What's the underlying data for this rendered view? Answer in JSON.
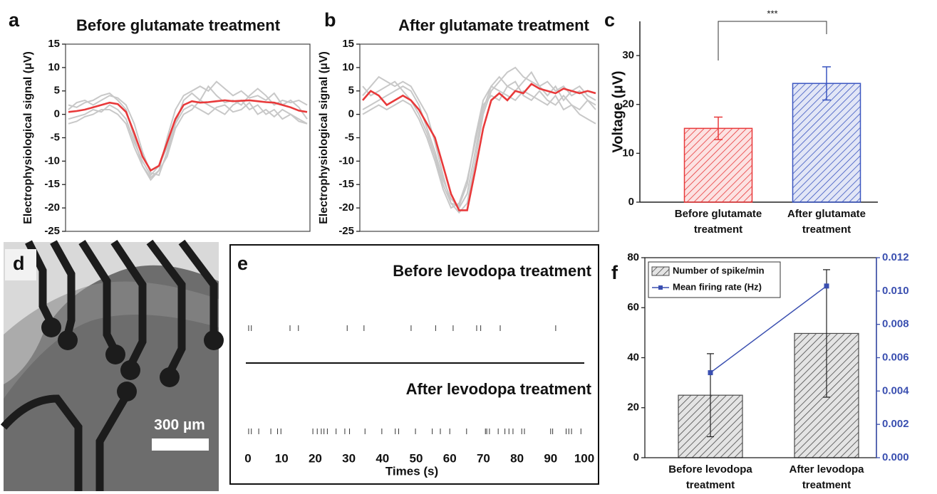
{
  "panel_labels": [
    "a",
    "b",
    "c",
    "d",
    "e",
    "f"
  ],
  "image": {
    "scale_bar_label": "300 µm"
  },
  "chart_data": [
    {
      "type": "line",
      "title": "Before glutamate treatment",
      "y_label": "Electrophysiological signal (μV)",
      "ylim": [
        -25,
        15
      ],
      "yticks": [
        15,
        10,
        5,
        0,
        -5,
        -10,
        -15,
        -20,
        -25
      ],
      "series": [
        {
          "color": "#c8c8c8",
          "values": [
            2,
            1.5,
            2.5,
            3,
            4,
            4.5,
            3,
            1,
            -5,
            -11,
            -13.5,
            -12,
            -5,
            1,
            4,
            5,
            6,
            5,
            7,
            5.5,
            4,
            5,
            3.5,
            4,
            3,
            4.5,
            2,
            3,
            1.5,
            -1
          ]
        },
        {
          "color": "#c8c8c8",
          "values": [
            -1,
            -0.5,
            0,
            1,
            0.5,
            2,
            1,
            -1,
            -6,
            -10,
            -13,
            -11,
            -7,
            -2,
            1,
            2,
            1,
            0,
            1.5,
            2,
            0.5,
            1,
            2.5,
            0,
            1,
            -0.5,
            1,
            0,
            -1,
            -2
          ]
        },
        {
          "color": "#c8c8c8",
          "values": [
            1,
            2.5,
            3,
            2,
            3,
            4,
            3.5,
            2,
            -2,
            -8,
            -12.5,
            -13,
            -8,
            -2,
            3,
            4.5,
            3,
            6,
            4,
            2.5,
            3,
            2,
            4,
            5.5,
            4,
            2,
            3,
            2.5,
            3,
            2
          ]
        },
        {
          "color": "#c8c8c8",
          "values": [
            -2,
            -1.5,
            -0.5,
            0,
            1,
            1,
            0,
            -2,
            -7,
            -11,
            -14,
            -12,
            -9,
            -3,
            0,
            1,
            3,
            2,
            1,
            0,
            2,
            3,
            1,
            2,
            0,
            1,
            -1,
            0,
            -1.5,
            -2
          ]
        },
        {
          "color": "#e8393a",
          "values": [
            0.5,
            0.7,
            1.0,
            1.5,
            2.0,
            2.5,
            2.2,
            0.5,
            -4,
            -9,
            -12,
            -11,
            -6,
            -1,
            2,
            2.8,
            2.5,
            2.6,
            2.8,
            3.0,
            2.8,
            2.9,
            3.0,
            2.8,
            2.6,
            2.5,
            2.0,
            1.5,
            0.8,
            0.5
          ]
        }
      ]
    },
    {
      "type": "line",
      "title": "After glutamate treatment",
      "y_label": "Electrophysiological signal (μV)",
      "ylim": [
        -25,
        15
      ],
      "yticks": [
        15,
        10,
        5,
        0,
        -5,
        -10,
        -15,
        -20,
        -25
      ],
      "series": [
        {
          "color": "#c8c8c8",
          "values": [
            4,
            6,
            8,
            7,
            6,
            7,
            6,
            3,
            0,
            -6,
            -13,
            -19,
            -21,
            -19,
            -10,
            0,
            5,
            7,
            9,
            10,
            8,
            7,
            6,
            7,
            5,
            6,
            4,
            5,
            3,
            2
          ]
        },
        {
          "color": "#c8c8c8",
          "values": [
            1,
            2,
            3,
            4,
            5,
            6,
            5,
            2,
            -3,
            -8,
            -14,
            -18,
            -20,
            -17,
            -8,
            1,
            6,
            5,
            4,
            3,
            5,
            4,
            3,
            2,
            4,
            1,
            2,
            0,
            -1,
            -2
          ]
        },
        {
          "color": "#c8c8c8",
          "values": [
            6,
            4,
            5,
            6,
            7,
            5,
            3,
            0,
            -4,
            -9,
            -15,
            -19,
            -19.5,
            -15,
            -5,
            3,
            6,
            8,
            6,
            5,
            7,
            9,
            6,
            4,
            6,
            3,
            5,
            6,
            4,
            3
          ]
        },
        {
          "color": "#c8c8c8",
          "values": [
            0,
            1,
            2,
            1,
            2,
            3,
            2,
            -1,
            -5,
            -10,
            -16,
            -20,
            -19,
            -14,
            -6,
            2,
            4,
            3,
            6,
            7,
            4,
            3,
            5,
            3,
            2,
            4,
            2,
            1,
            3,
            1
          ]
        },
        {
          "color": "#e8393a",
          "values": [
            3,
            5,
            4,
            2,
            3,
            4,
            3,
            1,
            -2,
            -5,
            -11,
            -17,
            -20.5,
            -20.5,
            -12,
            -3,
            3,
            4.5,
            3,
            5,
            4.5,
            6.5,
            5.5,
            5,
            4.5,
            5.5,
            5,
            4.5,
            5,
            4.5
          ]
        }
      ]
    },
    {
      "type": "bar",
      "y_label": "Voltage (μV)",
      "categories": [
        "Before glutamate treatment",
        "After glutamate treatment"
      ],
      "values": [
        15.1,
        24.3
      ],
      "errors": [
        2.3,
        3.4
      ],
      "colors": [
        "#e8393a",
        "#3a55c0"
      ],
      "ylim": [
        0,
        37
      ],
      "yticks": [
        0,
        10,
        20,
        30
      ],
      "annotation": "***"
    },
    {
      "type": "raster",
      "x_label": "Times (s)",
      "xlim": [
        0,
        100
      ],
      "xticks": [
        0,
        10,
        20,
        30,
        40,
        50,
        60,
        70,
        80,
        90,
        100
      ],
      "series": [
        {
          "name": "Before levodopa treatment",
          "values": [
            0.2,
            1.0,
            12.5,
            15.0,
            29.5,
            34.5,
            48.5,
            55.8,
            61.0,
            68.0,
            69.2,
            75.0,
            91.5
          ]
        },
        {
          "name": "After levodopa treatment",
          "values": [
            0.2,
            1.0,
            3.2,
            6.8,
            8.8,
            9.8,
            19.3,
            20.6,
            21.8,
            22.6,
            23.6,
            26.2,
            28.8,
            30.2,
            34.8,
            39.8,
            43.8,
            44.8,
            49.8,
            54.8,
            57.2,
            60.0,
            65.0,
            70.6,
            71.0,
            71.8,
            74.4,
            76.4,
            77.6,
            78.8,
            81.4,
            82.2,
            90.0,
            90.6,
            94.6,
            95.4,
            96.2,
            99.0
          ]
        }
      ]
    },
    {
      "type": "combo",
      "categories": [
        "Before levodopa treatment",
        "After levodopa treatment"
      ],
      "legend": "top-left",
      "ylim": [
        0,
        80
      ],
      "yticks": [
        0,
        20,
        40,
        60,
        80
      ],
      "y2lim": [
        0,
        0.012
      ],
      "y2ticks": [
        {
          "value": 0,
          "label": "0.000"
        },
        {
          "value": 0.002,
          "label": "0.002"
        },
        {
          "value": 0.004,
          "label": "0.004"
        },
        {
          "value": 0.006,
          "label": "0.006"
        },
        {
          "value": 0.008,
          "label": "0.008"
        },
        {
          "value": 0.01,
          "label": "0.010"
        },
        {
          "value": 0.012,
          "label": "0.012"
        }
      ],
      "series": [
        {
          "name": "Number of spike/min",
          "type": "bar",
          "color": "#4a4a4a",
          "values": [
            25,
            49.7
          ],
          "errors": [
            16.6,
            25.5
          ]
        },
        {
          "name": "Mean firing rate (Hz)",
          "type": "line",
          "axis": "y2",
          "color": "#3a4fb0",
          "values": [
            0.0051,
            0.0103
          ]
        }
      ]
    }
  ]
}
